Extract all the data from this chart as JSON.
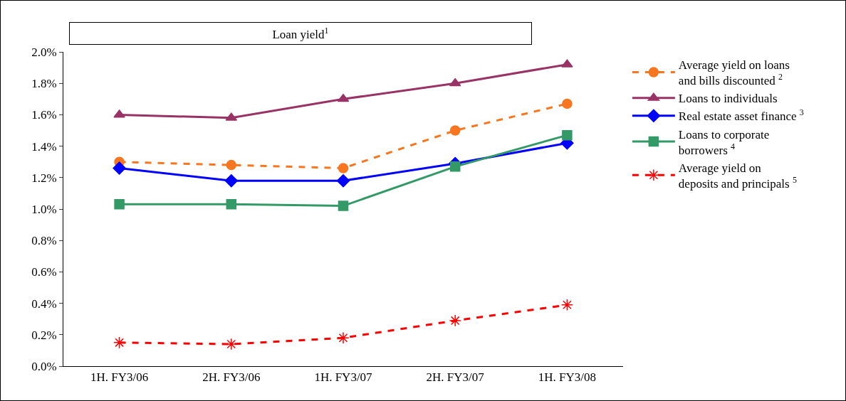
{
  "chart_data": {
    "type": "line",
    "title": "Loan yield$^{1}$",
    "categories": [
      "1H. FY3/06",
      "2H. FY3/06",
      "1H. FY3/07",
      "2H. FY3/07",
      "1H. FY3/08"
    ],
    "series": [
      {
        "name": "Average yield on loans\nand bills discounted $^{2}$",
        "color": "#f7761f",
        "marker": "circle",
        "line_style": "dashed",
        "values": [
          1.3,
          1.28,
          1.26,
          1.5,
          1.67
        ]
      },
      {
        "name": "Loans to individuals",
        "color": "#993366",
        "marker": "triangle",
        "line_style": "solid",
        "values": [
          1.6,
          1.58,
          1.7,
          1.8,
          1.92
        ]
      },
      {
        "name": "Real estate asset finance $^{3}$",
        "color": "#0000ff",
        "marker": "diamond",
        "line_style": "solid",
        "values": [
          1.26,
          1.18,
          1.18,
          1.29,
          1.42
        ]
      },
      {
        "name": "Loans to corporate\nborrowers $^{4}$",
        "color": "#339966",
        "marker": "square",
        "line_style": "solid",
        "values": [
          1.03,
          1.03,
          1.02,
          1.27,
          1.47
        ]
      },
      {
        "name": "Average yield on\ndeposits and principals $^{5}$",
        "color": "#ff0000",
        "marker": "cross",
        "line_style": "dashed",
        "values": [
          0.15,
          0.14,
          0.18,
          0.29,
          0.39
        ]
      }
    ],
    "ylim": [
      0,
      2.0
    ],
    "yticks": [
      {
        "value": 0,
        "label": "0.0%"
      },
      {
        "value": 0.2,
        "label": "0.2%"
      },
      {
        "value": 0.4,
        "label": "0.4%"
      },
      {
        "value": 0.6,
        "label": "0.6%"
      },
      {
        "value": 0.8,
        "label": "0.8%"
      },
      {
        "value": 1.0,
        "label": "1.0%"
      },
      {
        "value": 1.2,
        "label": "1.2%"
      },
      {
        "value": 1.4,
        "label": "1.4%"
      },
      {
        "value": 1.6,
        "label": "1.6%"
      },
      {
        "value": 1.8,
        "label": "1.8%"
      },
      {
        "value": 2.0,
        "label": "2.0%"
      }
    ],
    "grid": false,
    "legend": "right"
  }
}
